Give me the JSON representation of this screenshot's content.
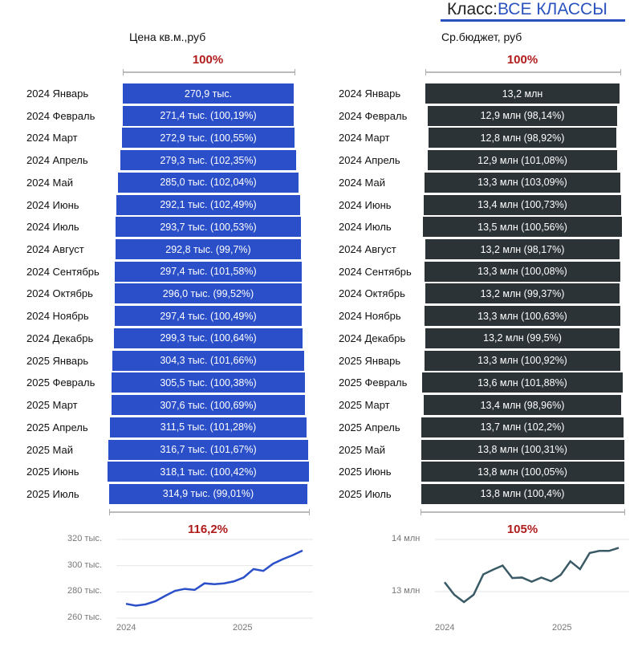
{
  "class_filter": {
    "label": "Класс:",
    "value": "ВСЕ КЛАССЫ"
  },
  "colors": {
    "price": "#2a4fc8",
    "budget": "#2b3336",
    "accent": "#b01c1c"
  },
  "chart_data": [
    {
      "type": "bar",
      "title": "Цена кв.м.,руб",
      "top_percent": "100%",
      "bottom_percent": "116,2%",
      "categories": [
        "2024 Январь",
        "2024 Февраль",
        "2024 Март",
        "2024 Апрель",
        "2024 Май",
        "2024 Июнь",
        "2024 Июль",
        "2024 Август",
        "2024 Сентябрь",
        "2024 Октябрь",
        "2024 Ноябрь",
        "2024 Декабрь",
        "2025 Январь",
        "2025 Февраль",
        "2025 Март",
        "2025 Апрель",
        "2025 Май",
        "2025 Июнь",
        "2025 Июль"
      ],
      "values": [
        270.9,
        271.4,
        272.9,
        279.3,
        285.0,
        292.1,
        293.7,
        292.8,
        297.4,
        296.0,
        297.4,
        299.3,
        304.3,
        305.5,
        307.6,
        311.5,
        316.7,
        318.1,
        314.9
      ],
      "labels": [
        "270,9 тыс.",
        "271,4 тыс. (100,19%)",
        "272,9 тыс. (100,55%)",
        "279,3 тыс. (102,35%)",
        "285,0 тыс. (102,04%)",
        "292,1 тыс. (102,49%)",
        "293,7 тыс. (100,53%)",
        "292,8 тыс. (99,7%)",
        "297,4 тыс. (101,58%)",
        "296,0 тыс. (99,52%)",
        "297,4 тыс. (100,49%)",
        "299,3 тыс. (100,64%)",
        "304,3 тыс. (101,66%)",
        "305,5 тыс. (100,38%)",
        "307,6 тыс. (100,69%)",
        "311,5 тыс. (101,28%)",
        "316,7 тыс. (101,67%)",
        "318,1 тыс. (100,42%)",
        "314,9 тыс. (99,01%)"
      ]
    },
    {
      "type": "bar",
      "title": "Ср.бюджет, руб",
      "top_percent": "100%",
      "bottom_percent": "105%",
      "categories": [
        "2024 Январь",
        "2024 Февраль",
        "2024 Март",
        "2024 Апрель",
        "2024 Май",
        "2024 Июнь",
        "2024 Июль",
        "2024 Август",
        "2024 Сентябрь",
        "2024 Октябрь",
        "2024 Ноябрь",
        "2024 Декабрь",
        "2025 Январь",
        "2025 Февраль",
        "2025 Март",
        "2025 Апрель",
        "2025 Май",
        "2025 Июнь",
        "2025 Июль"
      ],
      "values": [
        13.2,
        12.9,
        12.8,
        12.9,
        13.3,
        13.4,
        13.5,
        13.2,
        13.3,
        13.2,
        13.3,
        13.2,
        13.3,
        13.6,
        13.4,
        13.7,
        13.8,
        13.8,
        13.8
      ],
      "labels": [
        "13,2 млн",
        "12,9 млн (98,14%)",
        "12,8 млн (98,92%)",
        "12,9 млн (101,08%)",
        "13,3 млн (103,09%)",
        "13,4 млн (100,73%)",
        "13,5 млн (100,56%)",
        "13,2 млн (98,17%)",
        "13,3 млн (100,08%)",
        "13,2 млн (99,37%)",
        "13,3 млн (100,63%)",
        "13,2 млн (99,5%)",
        "13,3 млн (100,92%)",
        "13,6 млн (101,88%)",
        "13,4 млн (98,96%)",
        "13,7 млн (102,2%)",
        "13,8 млн (100,31%)",
        "13,8 млн (100,05%)",
        "13,8 млн (100,4%)"
      ]
    },
    {
      "type": "line",
      "series": "price",
      "yticks": [
        "320 тыс.",
        "300 тыс.",
        "280 тыс.",
        "260 тыс."
      ],
      "ytick_values": [
        320,
        300,
        280,
        260
      ],
      "ylim": [
        260,
        320
      ],
      "xticks": [
        "2024",
        "2025"
      ],
      "values": [
        270.9,
        269.5,
        270.5,
        272.9,
        277,
        280.8,
        282.3,
        281.5,
        286.5,
        285.9,
        286.5,
        288,
        291,
        297.4,
        296,
        301.5,
        305,
        308,
        311.5
      ]
    },
    {
      "type": "line",
      "series": "budget",
      "yticks": [
        "14 млн",
        "13 млн"
      ],
      "ytick_values": [
        14,
        13
      ],
      "ylim": [
        12.6,
        14
      ],
      "xticks": [
        "2024",
        "2025"
      ],
      "values": [
        13.18,
        12.94,
        12.8,
        12.94,
        13.33,
        13.42,
        13.5,
        13.26,
        13.27,
        13.19,
        13.27,
        13.2,
        13.32,
        13.58,
        13.43,
        13.74,
        13.78,
        13.78,
        13.84
      ]
    }
  ]
}
